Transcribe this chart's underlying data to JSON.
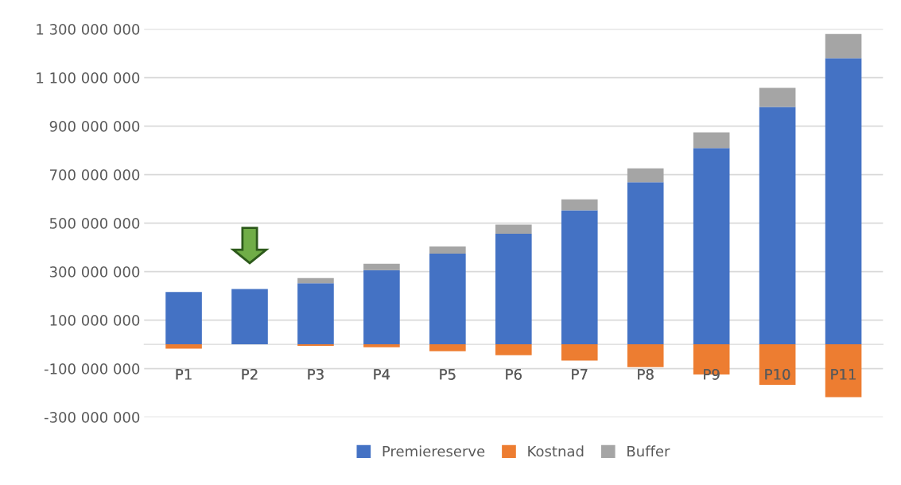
{
  "chart_data": {
    "type": "bar",
    "stacked": true,
    "categories": [
      "P1",
      "P2",
      "P3",
      "P4",
      "P5",
      "P6",
      "P7",
      "P8",
      "P9",
      "P10",
      "P11"
    ],
    "series": [
      {
        "name": "Premiereserve",
        "color": "#4472c4",
        "values": [
          216000000,
          228000000,
          252000000,
          306000000,
          374000000,
          456000000,
          553000000,
          668000000,
          809000000,
          979000000,
          1180000000
        ]
      },
      {
        "name": "Kostnad",
        "color": "#ed7d31",
        "values": [
          -18000000,
          0,
          -6000000,
          -12000000,
          -28000000,
          -45000000,
          -67000000,
          -94000000,
          -124000000,
          -167000000,
          -218000000
        ]
      },
      {
        "name": "Buffer",
        "color": "#a5a5a5",
        "values": [
          0,
          0,
          21000000,
          26000000,
          30000000,
          38000000,
          45000000,
          58000000,
          65000000,
          79000000,
          100000000
        ]
      }
    ],
    "ylim": [
      -300000000,
      1300000000
    ],
    "yticks": [
      {
        "value": -300000000,
        "label": "-300 000 000"
      },
      {
        "value": -100000000,
        "label": "-100 000 000"
      },
      {
        "value": 100000000,
        "label": "100 000 000"
      },
      {
        "value": 300000000,
        "label": "300 000 000"
      },
      {
        "value": 500000000,
        "label": "500 000 000"
      },
      {
        "value": 700000000,
        "label": "700 000 000"
      },
      {
        "value": 900000000,
        "label": "900 000 000"
      },
      {
        "value": 1100000000,
        "label": "1 100 000 000"
      },
      {
        "value": 1300000000,
        "label": "1 300 000 000"
      }
    ],
    "grid": "y",
    "legend": "bottom"
  }
}
